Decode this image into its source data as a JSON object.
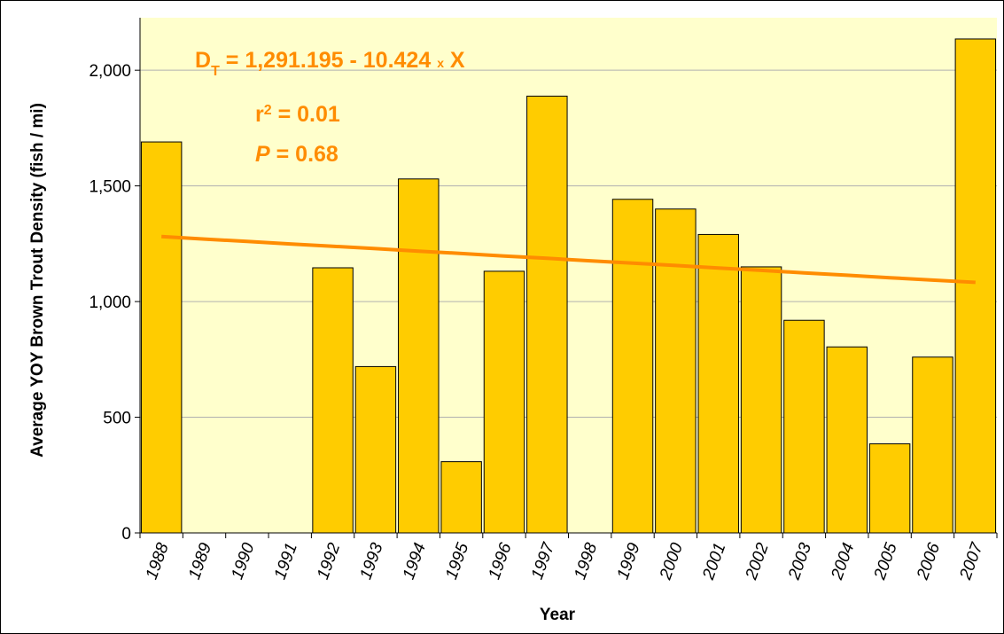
{
  "chart_data": {
    "type": "bar",
    "x_label": "Year",
    "y_label": "Average YOY Brown Trout Density (fish / mi)",
    "categories": [
      "1988",
      "1989",
      "1990",
      "1991",
      "1992",
      "1993",
      "1994",
      "1995",
      "1996",
      "1997",
      "1998",
      "1999",
      "2000",
      "2001",
      "2002",
      "2003",
      "2004",
      "2005",
      "2006",
      "2007"
    ],
    "series": [
      {
        "name": "Density",
        "color": "#ffcc00",
        "values": [
          1690,
          null,
          null,
          null,
          1146,
          719,
          1530,
          308,
          1131,
          1888,
          null,
          1442,
          1400,
          1290,
          1150,
          919,
          804,
          385,
          760,
          2135
        ]
      },
      {
        "name": "Trend",
        "color": "#ff8c00",
        "values": [
          1281,
          1270,
          1260,
          1249,
          1239,
          1229,
          1218,
          1208,
          1197,
          1187,
          1176,
          1166,
          1156,
          1145,
          1135,
          1124,
          1114,
          1103,
          1093,
          1083
        ]
      }
    ],
    "ylim": [
      0,
      2200
    ],
    "yticks": [
      0,
      {
        "value": 500,
        "label": "500"
      },
      {
        "value": 1000,
        "label": "1,000"
      },
      {
        "value": 1500,
        "label": "1,500"
      },
      {
        "value": 2000,
        "label": "2,000"
      }
    ],
    "grid": true,
    "plot_background": "#ffffcc",
    "annotations": [
      {
        "parts": [
          "D",
          "T",
          " = 1,291.195 - 10.424 ",
          "x",
          " X"
        ]
      },
      {
        "parts": [
          "r",
          "2",
          " = 0.01"
        ]
      },
      {
        "parts": [
          "P",
          " = 0.68"
        ]
      }
    ]
  }
}
